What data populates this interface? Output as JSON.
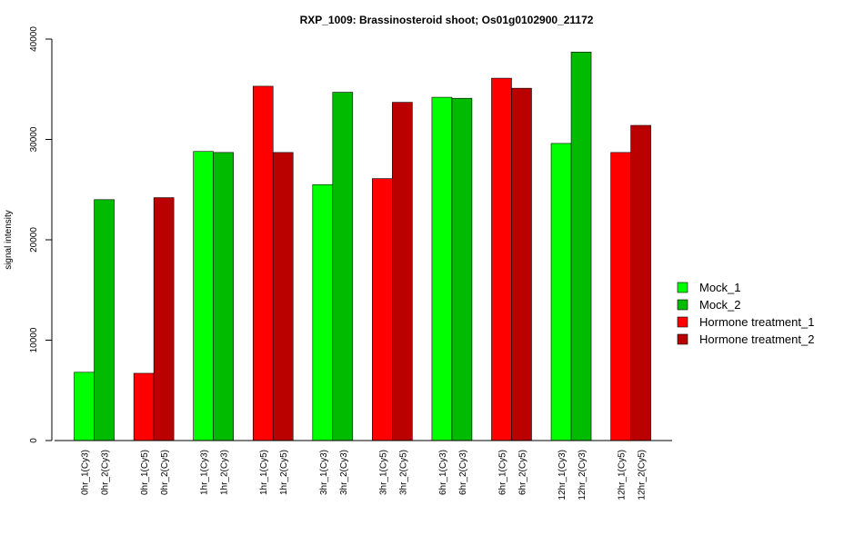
{
  "chart_data": {
    "type": "bar",
    "title": "RXP_1009: Brassinosteroid shoot; Os01g0102900_21172",
    "xlabel": "",
    "ylabel": "signal intensity",
    "ylim": [
      0,
      40000
    ],
    "yticks": [
      0,
      10000,
      20000,
      30000,
      40000
    ],
    "ytick_labels": [
      "0",
      "10000",
      "20000",
      "30000",
      "40000"
    ],
    "grid": false,
    "legend_position": "right",
    "legend": [
      {
        "label": "Mock_1",
        "color": "#00ff00"
      },
      {
        "label": "Mock_2",
        "color": "#00bb00"
      },
      {
        "label": "Hormone treatment_1",
        "color": "#ff0000"
      },
      {
        "label": "Hormone treatment_2",
        "color": "#bb0000"
      }
    ],
    "bars": [
      {
        "label": "0hr_1(Cy3)",
        "value": 6800,
        "color": "#00ff00",
        "group": 0
      },
      {
        "label": "0hr_2(Cy3)",
        "value": 24000,
        "color": "#00bb00",
        "group": 0
      },
      {
        "label": "0hr_1(Cy5)",
        "value": 6700,
        "color": "#ff0000",
        "group": 1
      },
      {
        "label": "0hr_2(Cy5)",
        "value": 24200,
        "color": "#bb0000",
        "group": 1
      },
      {
        "label": "1hr_1(Cy3)",
        "value": 28800,
        "color": "#00ff00",
        "group": 2
      },
      {
        "label": "1hr_2(Cy3)",
        "value": 28700,
        "color": "#00bb00",
        "group": 2
      },
      {
        "label": "1hr_1(Cy5)",
        "value": 35300,
        "color": "#ff0000",
        "group": 3
      },
      {
        "label": "1hr_2(Cy5)",
        "value": 28700,
        "color": "#bb0000",
        "group": 3
      },
      {
        "label": "3hr_1(Cy3)",
        "value": 25500,
        "color": "#00ff00",
        "group": 4
      },
      {
        "label": "3hr_2(Cy3)",
        "value": 34700,
        "color": "#00bb00",
        "group": 4
      },
      {
        "label": "3hr_1(Cy5)",
        "value": 26100,
        "color": "#ff0000",
        "group": 5
      },
      {
        "label": "3hr_2(Cy5)",
        "value": 33700,
        "color": "#bb0000",
        "group": 5
      },
      {
        "label": "6hr_1(Cy3)",
        "value": 34200,
        "color": "#00ff00",
        "group": 6
      },
      {
        "label": "6hr_2(Cy3)",
        "value": 34100,
        "color": "#00bb00",
        "group": 6
      },
      {
        "label": "6hr_1(Cy5)",
        "value": 36100,
        "color": "#ff0000",
        "group": 7
      },
      {
        "label": "6hr_2(Cy5)",
        "value": 35100,
        "color": "#bb0000",
        "group": 7
      },
      {
        "label": "12hr_1(Cy3)",
        "value": 29600,
        "color": "#00ff00",
        "group": 8
      },
      {
        "label": "12hr_2(Cy3)",
        "value": 38700,
        "color": "#00bb00",
        "group": 8
      },
      {
        "label": "12hr_1(Cy5)",
        "value": 28700,
        "color": "#ff0000",
        "group": 9
      },
      {
        "label": "12hr_2(Cy5)",
        "value": 31400,
        "color": "#bb0000",
        "group": 9
      }
    ]
  }
}
